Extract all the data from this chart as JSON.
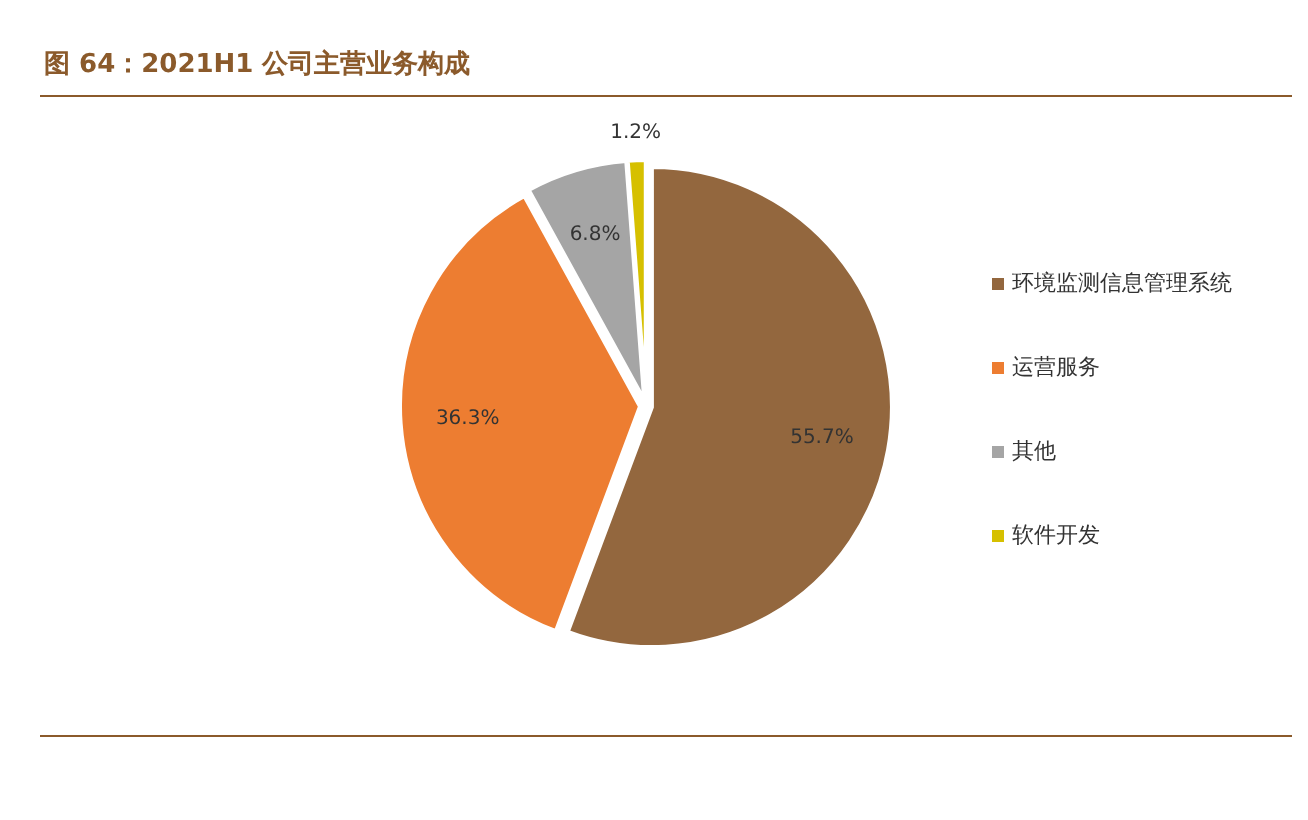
{
  "chart_data": {
    "type": "pie",
    "title": "图 64：2021H1 公司主营业务构成",
    "categories": [
      "环境监测信息管理系统",
      "运营服务",
      "其他",
      "软件开发"
    ],
    "values": [
      55.7,
      36.3,
      6.8,
      1.2
    ],
    "colors": [
      "#93673e",
      "#ed7d31",
      "#a5a5a5",
      "#d6c000"
    ],
    "value_labels": [
      "55.7%",
      "36.3%",
      "6.8%",
      "1.2%"
    ],
    "legend": "right"
  }
}
